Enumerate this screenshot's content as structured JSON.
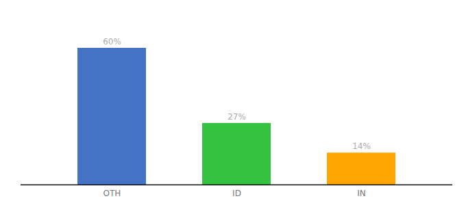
{
  "chart_data": {
    "type": "bar",
    "categories": [
      "OTH",
      "ID",
      "IN"
    ],
    "values": [
      60,
      27,
      14
    ],
    "value_labels": [
      "60%",
      "27%",
      "14%"
    ],
    "colors": [
      "#4472C4",
      "#34C240",
      "#FFA500"
    ],
    "ylim": [
      0,
      75
    ],
    "data_labels": true,
    "tick_labels": "x"
  }
}
